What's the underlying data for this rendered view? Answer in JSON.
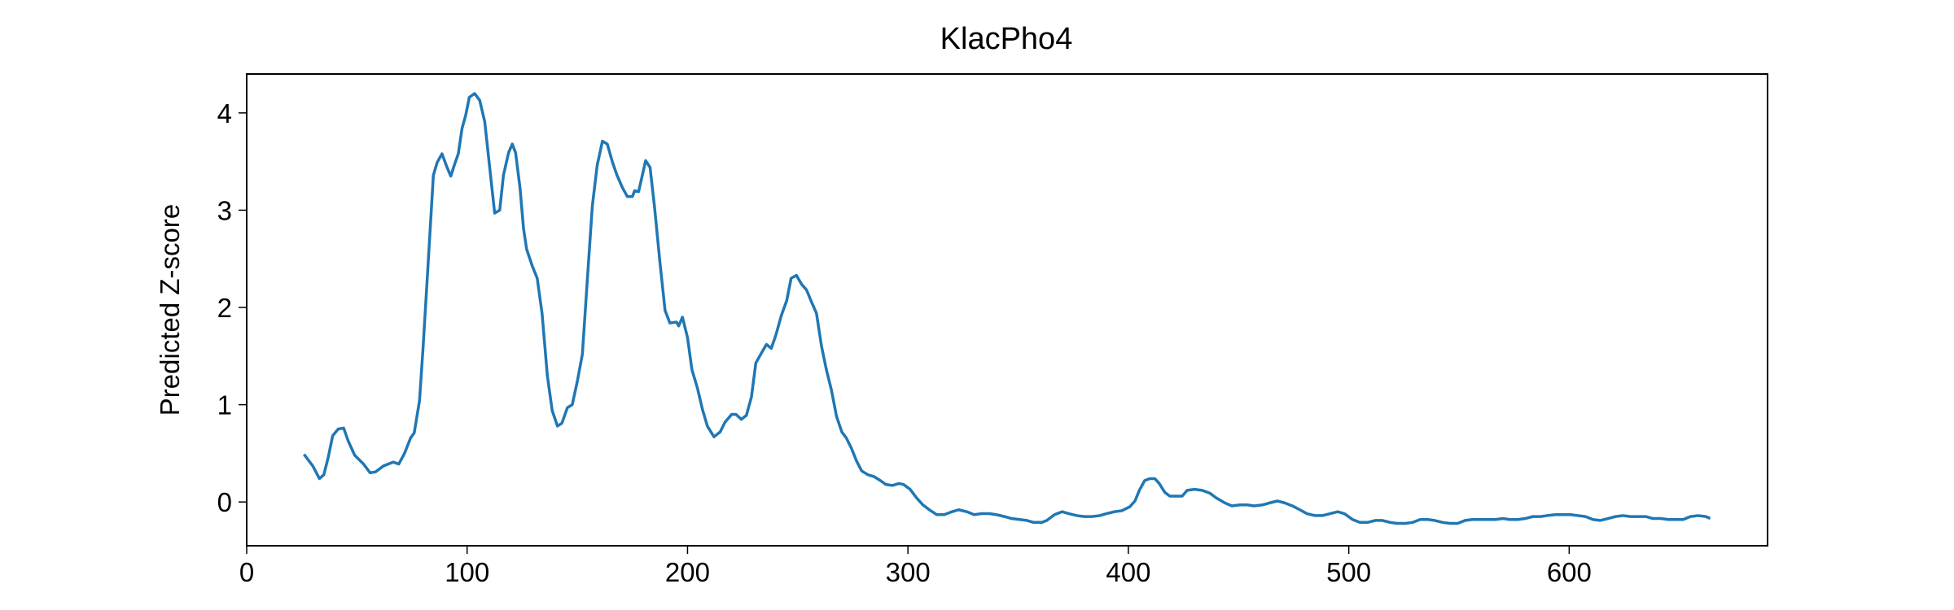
{
  "chart_data": {
    "type": "line",
    "title": "KlacPho4",
    "y_label": "Predicted Z-score",
    "xlim": [
      0,
      690
    ],
    "xticks": [
      0,
      100,
      200,
      300,
      400,
      500,
      600
    ],
    "ylim": [
      -0.45,
      4.4
    ],
    "yticks": [
      0,
      1,
      2,
      3,
      4
    ],
    "series": [
      {
        "name": "KlacPho4",
        "color": "#1f77b4",
        "x": [
          26,
          30,
          33,
          35,
          37,
          39,
          41.5,
          44,
          46,
          49,
          53,
          56,
          58.5,
          62,
          66.5,
          69,
          71.6,
          74.4,
          76,
          78.4,
          80,
          82,
          84.7,
          86.4,
          88.6,
          90.9,
          92.6,
          94.3,
          96,
          97.7,
          99.4,
          101,
          103.4,
          105.7,
          108,
          110,
          112.5,
          114.8,
          116.5,
          118.8,
          120.5,
          122,
          124,
          125.6,
          127,
          129.5,
          131.8,
          134,
          136.4,
          138.6,
          141,
          143,
          145.5,
          147.7,
          150,
          152.3,
          154.5,
          156.8,
          159,
          161.4,
          163.6,
          166,
          168,
          170.5,
          172.7,
          175,
          176,
          177.8,
          179.5,
          181,
          183,
          185,
          187.5,
          189.8,
          192,
          195,
          196,
          197.7,
          200,
          202,
          204.5,
          206.8,
          209,
          212,
          214.8,
          217,
          220,
          222,
          224.4,
          226.7,
          229,
          231,
          233.5,
          235.8,
          238,
          240,
          242.6,
          245,
          247,
          249.4,
          251.7,
          254,
          256,
          258.5,
          260.8,
          263,
          265.3,
          267.6,
          270,
          272,
          274.4,
          276.7,
          279,
          281.8,
          284.7,
          287.5,
          290,
          293,
          296,
          298,
          301,
          304,
          306.8,
          309.7,
          313,
          316.5,
          320,
          323,
          326.7,
          330,
          333.5,
          337,
          340,
          343.8,
          347,
          350.6,
          354,
          357,
          360.8,
          363,
          366.5,
          370,
          373,
          376.7,
          380,
          383.5,
          387,
          390,
          393.8,
          397,
          400.6,
          403,
          405,
          407.4,
          409.7,
          412,
          414,
          416.5,
          418.8,
          422,
          424.4,
          426.7,
          430,
          433.5,
          437,
          440,
          443.8,
          447,
          450.6,
          454,
          457,
          460.8,
          464,
          467.6,
          471,
          474.4,
          477.8,
          481,
          484.7,
          488,
          491.5,
          495,
          498,
          501.7,
          505,
          508.5,
          512,
          515.3,
          518.8,
          522,
          525.6,
          529,
          532.4,
          535.8,
          539,
          542.6,
          546,
          549.4,
          552.8,
          556,
          559.7,
          563,
          566.5,
          570,
          573,
          576.7,
          580,
          583.5,
          587,
          590,
          593.8,
          597,
          600.6,
          604,
          607.4,
          610.8,
          614,
          617.6,
          621,
          624.4,
          627.8,
          631,
          634.7,
          638,
          641.5,
          645,
          648,
          651.7,
          655,
          658.5,
          662,
          664
        ],
        "values": [
          0.49,
          0.37,
          0.24,
          0.28,
          0.46,
          0.68,
          0.75,
          0.76,
          0.63,
          0.48,
          0.39,
          0.3,
          0.31,
          0.37,
          0.41,
          0.39,
          0.5,
          0.66,
          0.71,
          1.04,
          1.58,
          2.33,
          3.36,
          3.49,
          3.58,
          3.44,
          3.35,
          3.47,
          3.58,
          3.84,
          3.98,
          4.16,
          4.2,
          4.13,
          3.91,
          3.49,
          2.97,
          3.0,
          3.36,
          3.59,
          3.68,
          3.59,
          3.23,
          2.81,
          2.6,
          2.43,
          2.3,
          1.94,
          1.3,
          0.94,
          0.78,
          0.81,
          0.97,
          1.0,
          1.24,
          1.52,
          2.27,
          3.04,
          3.46,
          3.71,
          3.68,
          3.49,
          3.36,
          3.23,
          3.14,
          3.14,
          3.2,
          3.19,
          3.36,
          3.51,
          3.44,
          3.04,
          2.46,
          1.97,
          1.84,
          1.85,
          1.81,
          1.9,
          1.69,
          1.36,
          1.17,
          0.95,
          0.78,
          0.67,
          0.72,
          0.82,
          0.9,
          0.9,
          0.85,
          0.89,
          1.08,
          1.43,
          1.53,
          1.62,
          1.58,
          1.71,
          1.92,
          2.07,
          2.3,
          2.33,
          2.24,
          2.18,
          2.07,
          1.94,
          1.6,
          1.36,
          1.15,
          0.88,
          0.72,
          0.66,
          0.55,
          0.42,
          0.32,
          0.28,
          0.26,
          0.22,
          0.18,
          0.17,
          0.19,
          0.18,
          0.13,
          0.04,
          -0.03,
          -0.08,
          -0.13,
          -0.13,
          -0.1,
          -0.08,
          -0.1,
          -0.13,
          -0.12,
          -0.12,
          -0.13,
          -0.15,
          -0.17,
          -0.18,
          -0.19,
          -0.21,
          -0.21,
          -0.19,
          -0.13,
          -0.1,
          -0.12,
          -0.14,
          -0.15,
          -0.15,
          -0.14,
          -0.12,
          -0.1,
          -0.09,
          -0.05,
          0.01,
          0.12,
          0.22,
          0.24,
          0.24,
          0.19,
          0.1,
          0.06,
          0.06,
          0.06,
          0.12,
          0.13,
          0.12,
          0.09,
          0.04,
          -0.01,
          -0.04,
          -0.03,
          -0.03,
          -0.04,
          -0.03,
          -0.01,
          0.01,
          -0.01,
          -0.04,
          -0.08,
          -0.12,
          -0.14,
          -0.14,
          -0.12,
          -0.1,
          -0.12,
          -0.18,
          -0.21,
          -0.21,
          -0.19,
          -0.19,
          -0.21,
          -0.22,
          -0.22,
          -0.21,
          -0.18,
          -0.18,
          -0.19,
          -0.21,
          -0.22,
          -0.22,
          -0.19,
          -0.18,
          -0.18,
          -0.18,
          -0.18,
          -0.17,
          -0.18,
          -0.18,
          -0.17,
          -0.15,
          -0.15,
          -0.14,
          -0.13,
          -0.13,
          -0.13,
          -0.14,
          -0.15,
          -0.18,
          -0.19,
          -0.17,
          -0.15,
          -0.14,
          -0.15,
          -0.15,
          -0.15,
          -0.17,
          -0.17,
          -0.18,
          -0.18,
          -0.18,
          -0.15,
          -0.14,
          -0.15,
          -0.17
        ]
      }
    ]
  }
}
